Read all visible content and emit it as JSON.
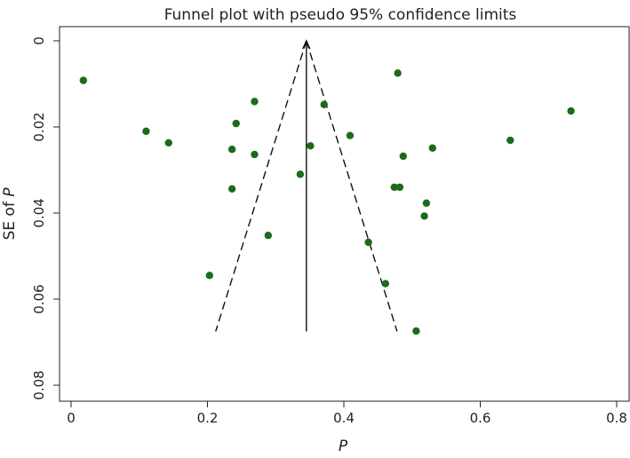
{
  "chart_data": {
    "type": "scatter",
    "title": "Funnel plot with pseudo 95% confidence limits",
    "xlabel": "P",
    "ylabel_prefix": "SE of ",
    "ylabel_var": "P",
    "xlim": [
      -0.01,
      0.81
    ],
    "ylim": [
      0,
      0.08
    ],
    "y_inverted": true,
    "x_ticks": [
      0,
      0.2,
      0.4,
      0.6,
      0.8
    ],
    "x_tick_labels": [
      "0",
      "0.2",
      "0.4",
      "0.6",
      "0.8"
    ],
    "y_ticks": [
      0,
      0.02,
      0.04,
      0.06,
      0.08
    ],
    "y_tick_labels": [
      "0",
      "0.02",
      "0.04",
      "0.06",
      "0.08"
    ],
    "grid": false,
    "point_color": "#1a6b1a",
    "pooled_estimate": 0.345,
    "funnel": {
      "apex": [
        0.345,
        0.0
      ],
      "left_base": [
        0.212,
        0.0675
      ],
      "right_base": [
        0.478,
        0.0675
      ]
    },
    "points": [
      {
        "x": 0.018,
        "y": 0.0092
      },
      {
        "x": 0.11,
        "y": 0.021
      },
      {
        "x": 0.143,
        "y": 0.0237
      },
      {
        "x": 0.203,
        "y": 0.0545
      },
      {
        "x": 0.236,
        "y": 0.0252
      },
      {
        "x": 0.236,
        "y": 0.0344
      },
      {
        "x": 0.242,
        "y": 0.0192
      },
      {
        "x": 0.269,
        "y": 0.0141
      },
      {
        "x": 0.269,
        "y": 0.0264
      },
      {
        "x": 0.289,
        "y": 0.0452
      },
      {
        "x": 0.336,
        "y": 0.031
      },
      {
        "x": 0.351,
        "y": 0.0244
      },
      {
        "x": 0.371,
        "y": 0.0148
      },
      {
        "x": 0.409,
        "y": 0.022
      },
      {
        "x": 0.436,
        "y": 0.0468
      },
      {
        "x": 0.461,
        "y": 0.0564
      },
      {
        "x": 0.474,
        "y": 0.034
      },
      {
        "x": 0.479,
        "y": 0.0075
      },
      {
        "x": 0.482,
        "y": 0.034
      },
      {
        "x": 0.487,
        "y": 0.0268
      },
      {
        "x": 0.506,
        "y": 0.0674
      },
      {
        "x": 0.518,
        "y": 0.0407
      },
      {
        "x": 0.521,
        "y": 0.0377
      },
      {
        "x": 0.53,
        "y": 0.0249
      },
      {
        "x": 0.644,
        "y": 0.0231
      },
      {
        "x": 0.733,
        "y": 0.0163
      }
    ]
  }
}
